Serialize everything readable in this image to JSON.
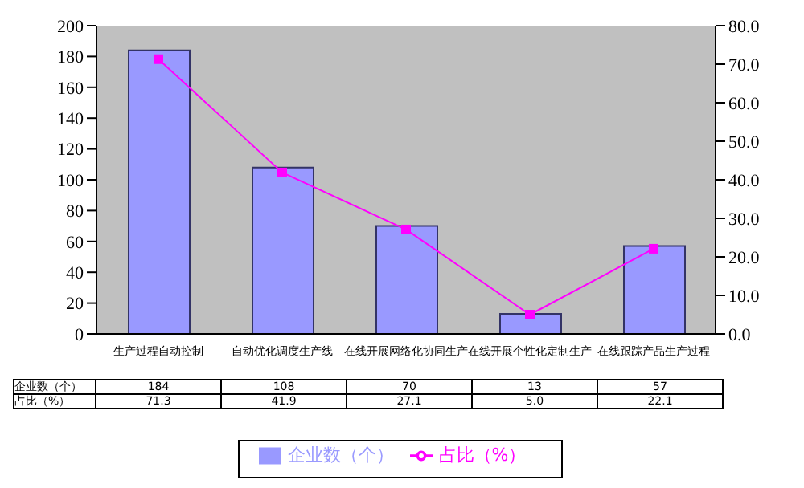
{
  "chart_data": {
    "type": "bar",
    "categories": [
      "生产过程自动控制",
      "自动优化调度生产线",
      "在线开展网络化协同生产",
      "在线开展个性化定制生产",
      "在线跟踪产品生产过程"
    ],
    "series": [
      {
        "name": "企业数（个）",
        "color": "#9999ff",
        "values": [
          184,
          108,
          70,
          13,
          57
        ],
        "value_labels": [
          "184",
          "108",
          "70",
          "13",
          "57"
        ]
      },
      {
        "name": "占比（%）",
        "type": "line",
        "axis": "y2",
        "color": "#ff00ff",
        "marker": "square",
        "values": [
          71.3,
          41.9,
          27.1,
          5.0,
          22.1
        ],
        "value_labels": [
          "71.3",
          "41.9",
          "27.1",
          "5.0",
          "22.1"
        ]
      }
    ],
    "ylim": [
      0,
      200
    ],
    "yticks": [
      0,
      20,
      40,
      60,
      80,
      100,
      120,
      140,
      160,
      180,
      200
    ],
    "y2lim": [
      0,
      80
    ],
    "y2ticks": [
      {
        "value": 0,
        "label": "0.0"
      },
      {
        "value": 10,
        "label": "10.0"
      },
      {
        "value": 20,
        "label": "20.0"
      },
      {
        "value": 30,
        "label": "30.0"
      },
      {
        "value": 40,
        "label": "40.0"
      },
      {
        "value": 50,
        "label": "50.0"
      },
      {
        "value": 60,
        "label": "60.0"
      },
      {
        "value": 70,
        "label": "70.0"
      },
      {
        "value": 80,
        "label": "80.0"
      }
    ],
    "grid": false,
    "legend": "bottom"
  }
}
